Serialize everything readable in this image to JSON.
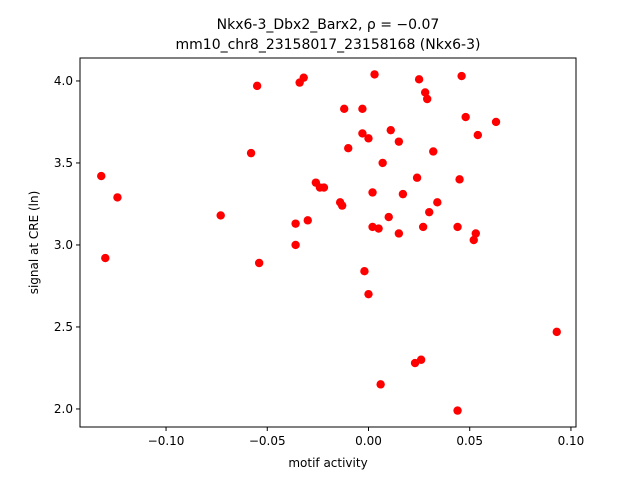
{
  "chart_data": {
    "type": "scatter",
    "title_line1": "Nkx6-3_Dbx2_Barx2, ρ = −0.07",
    "title_line2": "mm10_chr8_23158017_23158168 (Nkx6-3)",
    "xlabel": "motif activity",
    "ylabel": "signal at CRE (ln)",
    "xlim": [
      -0.1425,
      0.1025
    ],
    "ylim": [
      1.89,
      4.14
    ],
    "xticks": [
      -0.1,
      -0.05,
      0.0,
      0.05,
      0.1
    ],
    "xtick_labels": [
      "−0.10",
      "−0.05",
      "0.00",
      "0.05",
      "0.10"
    ],
    "yticks": [
      2.0,
      2.5,
      3.0,
      3.5,
      4.0
    ],
    "ytick_labels": [
      "2.0",
      "2.5",
      "3.0",
      "3.5",
      "4.0"
    ],
    "grid": false,
    "marker_color": "#ff0000",
    "points": [
      {
        "x": -0.132,
        "y": 3.42
      },
      {
        "x": -0.13,
        "y": 2.92
      },
      {
        "x": -0.124,
        "y": 3.29
      },
      {
        "x": -0.073,
        "y": 3.18
      },
      {
        "x": -0.058,
        "y": 3.56
      },
      {
        "x": -0.055,
        "y": 3.97
      },
      {
        "x": -0.054,
        "y": 2.89
      },
      {
        "x": -0.036,
        "y": 3.13
      },
      {
        "x": -0.036,
        "y": 3.0
      },
      {
        "x": -0.034,
        "y": 3.99
      },
      {
        "x": -0.032,
        "y": 4.02
      },
      {
        "x": -0.03,
        "y": 3.15
      },
      {
        "x": -0.026,
        "y": 3.38
      },
      {
        "x": -0.024,
        "y": 3.35
      },
      {
        "x": -0.022,
        "y": 3.35
      },
      {
        "x": -0.014,
        "y": 3.26
      },
      {
        "x": -0.013,
        "y": 3.24
      },
      {
        "x": -0.012,
        "y": 3.83
      },
      {
        "x": -0.01,
        "y": 3.59
      },
      {
        "x": -0.003,
        "y": 3.83
      },
      {
        "x": -0.003,
        "y": 3.68
      },
      {
        "x": -0.002,
        "y": 2.84
      },
      {
        "x": 0.0,
        "y": 2.7
      },
      {
        "x": 0.0,
        "y": 3.65
      },
      {
        "x": 0.002,
        "y": 3.11
      },
      {
        "x": 0.002,
        "y": 3.32
      },
      {
        "x": 0.003,
        "y": 4.04
      },
      {
        "x": 0.005,
        "y": 3.1
      },
      {
        "x": 0.006,
        "y": 2.15
      },
      {
        "x": 0.007,
        "y": 3.5
      },
      {
        "x": 0.01,
        "y": 3.17
      },
      {
        "x": 0.011,
        "y": 3.7
      },
      {
        "x": 0.015,
        "y": 3.07
      },
      {
        "x": 0.015,
        "y": 3.63
      },
      {
        "x": 0.017,
        "y": 3.31
      },
      {
        "x": 0.023,
        "y": 2.28
      },
      {
        "x": 0.024,
        "y": 3.41
      },
      {
        "x": 0.025,
        "y": 4.01
      },
      {
        "x": 0.026,
        "y": 2.3
      },
      {
        "x": 0.027,
        "y": 3.11
      },
      {
        "x": 0.028,
        "y": 3.93
      },
      {
        "x": 0.029,
        "y": 3.89
      },
      {
        "x": 0.03,
        "y": 3.2
      },
      {
        "x": 0.032,
        "y": 3.57
      },
      {
        "x": 0.034,
        "y": 3.26
      },
      {
        "x": 0.044,
        "y": 1.99
      },
      {
        "x": 0.044,
        "y": 3.11
      },
      {
        "x": 0.045,
        "y": 3.4
      },
      {
        "x": 0.046,
        "y": 4.03
      },
      {
        "x": 0.048,
        "y": 3.78
      },
      {
        "x": 0.052,
        "y": 3.03
      },
      {
        "x": 0.053,
        "y": 3.07
      },
      {
        "x": 0.054,
        "y": 3.67
      },
      {
        "x": 0.063,
        "y": 3.75
      },
      {
        "x": 0.093,
        "y": 2.47
      }
    ]
  }
}
